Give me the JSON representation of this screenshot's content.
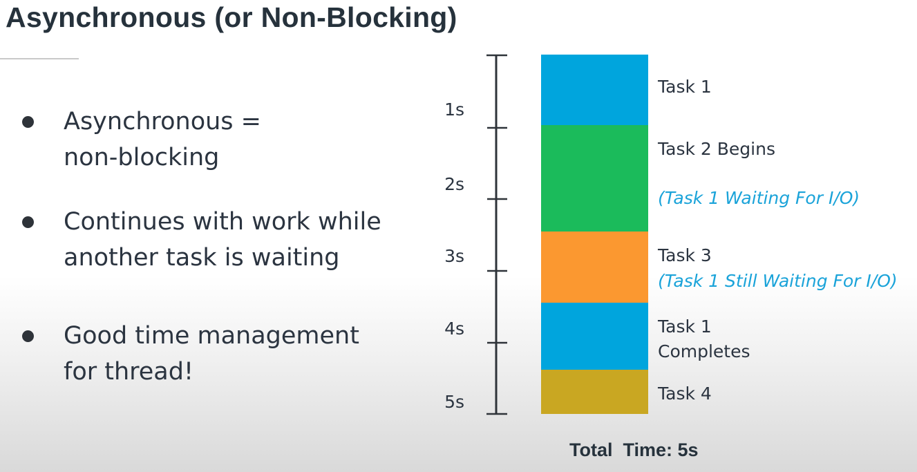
{
  "slide": {
    "title": "Asynchronous (or Non-Blocking)",
    "bullets": [
      "Asynchronous =\nnon-blocking",
      "Continues with work while\nanother task is waiting",
      "Good time management\nfor thread!"
    ]
  },
  "timeline": {
    "ticks": [
      "1s",
      "2s",
      "3s",
      "4s",
      "5s"
    ],
    "segments": [
      {
        "label": "Task 1",
        "note": "",
        "color": "#00a5dd"
      },
      {
        "label": "Task 2 Begins",
        "note": "(Task 1 Waiting For I/O)",
        "color": "#1bbb5b"
      },
      {
        "label": "Task 3",
        "note": "(Task 1 Still Waiting For I/O)",
        "color": "#fb9830"
      },
      {
        "label": "Task 1\nCompletes",
        "note": "",
        "color": "#00a5dd"
      },
      {
        "label": "Task 4",
        "note": "",
        "color": "#c9a722"
      }
    ],
    "total_label": "Total  Time: 5s",
    "note_color": "#1aa3d9"
  }
}
